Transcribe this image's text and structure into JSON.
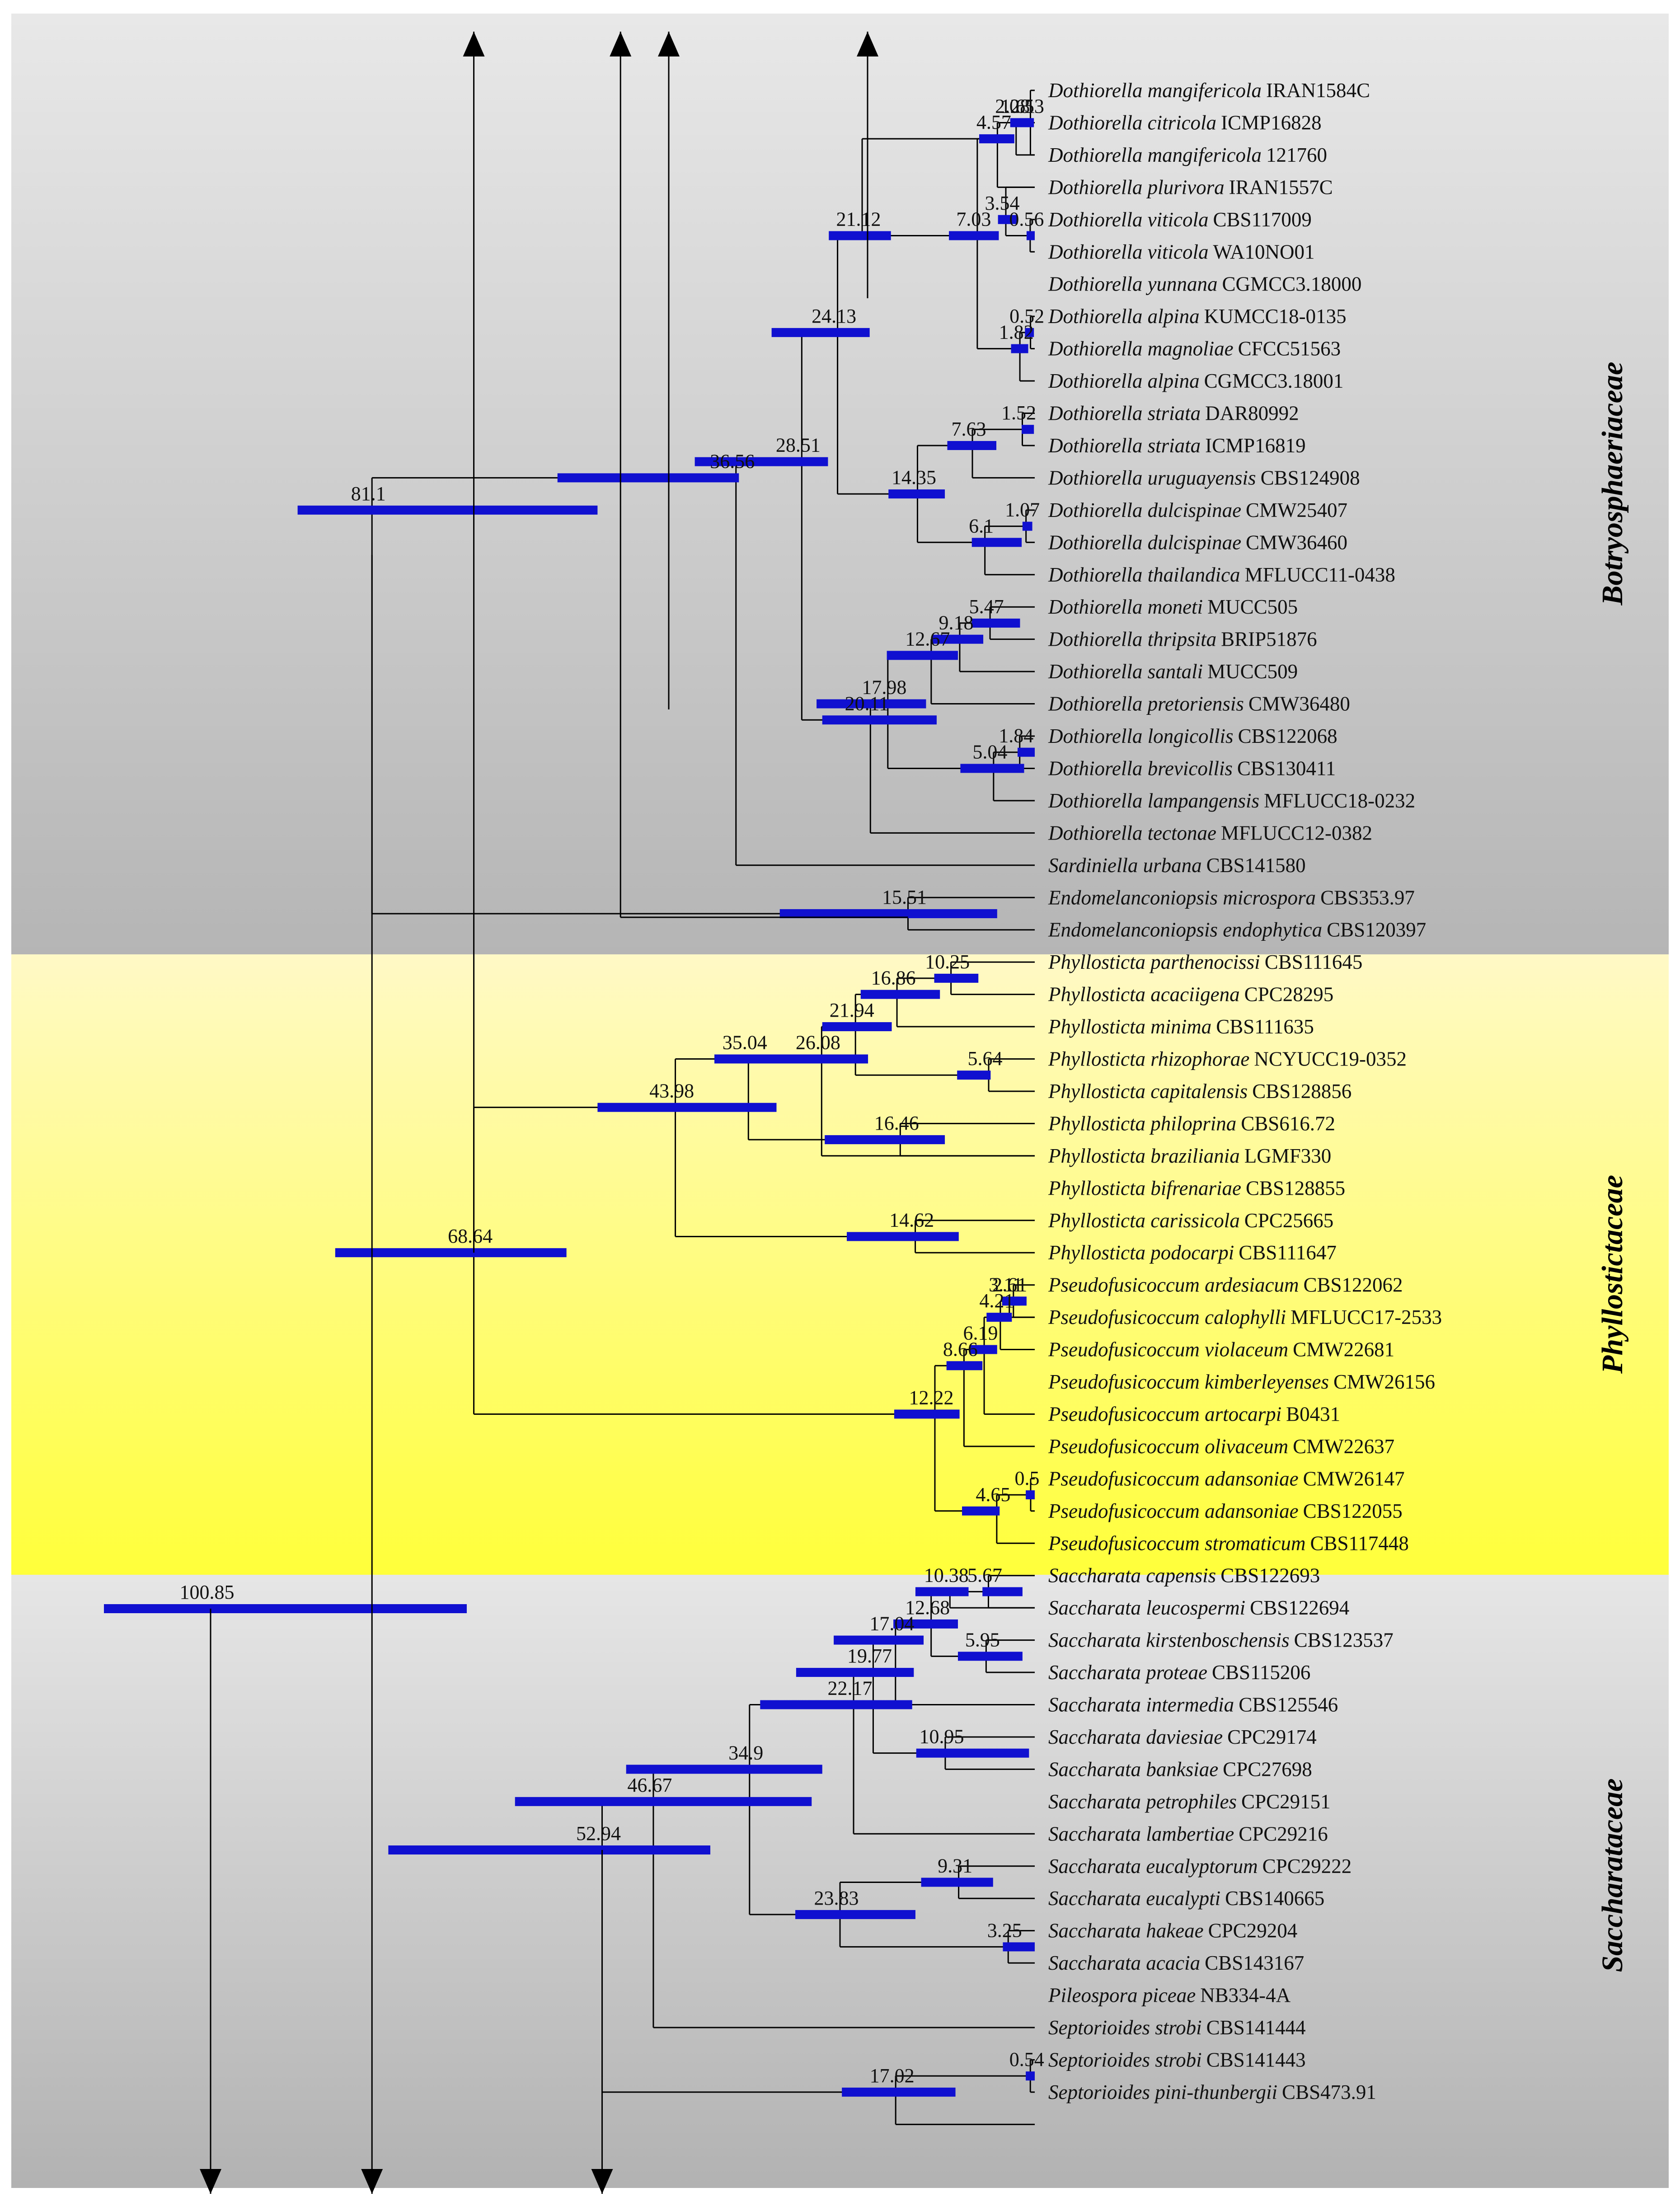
{
  "colors": {
    "bar": "#1010d0",
    "line": "#000000",
    "band_gray_top": "#e6e6e6",
    "band_gray_bottom": "#b6b6b6",
    "band_yellow_top": "#fff9c8",
    "band_yellow_bottom": "#ffff3c",
    "text": "#111111"
  },
  "families": {
    "botryosphaeriaceae": "Botryosphaeriaceae",
    "phyllostictaceae": "Phyllostictaceae",
    "saccharataceae": "Saccharataceae"
  },
  "tips": [
    {
      "genus": "Dothiorella",
      "species": "mangifericola",
      "strain": "IRAN1584C"
    },
    {
      "genus": "Dothiorella",
      "species": "citricola",
      "strain": "ICMP16828"
    },
    {
      "genus": "Dothiorella",
      "species": "mangifericola",
      "strain": "121760"
    },
    {
      "genus": "Dothiorella",
      "species": "plurivora",
      "strain": "IRAN1557C"
    },
    {
      "genus": "Dothiorella",
      "species": "viticola",
      "strain": "CBS117009"
    },
    {
      "genus": "Dothiorella",
      "species": "viticola",
      "strain": "WA10NO01"
    },
    {
      "genus": "Dothiorella",
      "species": "yunnana",
      "strain": "CGMCC3.18000"
    },
    {
      "genus": "Dothiorella",
      "species": "alpina",
      "strain": "KUMCC18-0135"
    },
    {
      "genus": "Dothiorella",
      "species": "magnoliae",
      "strain": "CFCC51563"
    },
    {
      "genus": "Dothiorella",
      "species": "alpina",
      "strain": "CGMCC3.18001"
    },
    {
      "genus": "Dothiorella",
      "species": "striata",
      "strain": "DAR80992"
    },
    {
      "genus": "Dothiorella",
      "species": "striata",
      "strain": "ICMP16819"
    },
    {
      "genus": "Dothiorella",
      "species": "uruguayensis",
      "strain": "CBS124908"
    },
    {
      "genus": "Dothiorella",
      "species": "dulcispinae",
      "strain": "CMW25407"
    },
    {
      "genus": "Dothiorella",
      "species": "dulcispinae",
      "strain": "CMW36460"
    },
    {
      "genus": "Dothiorella",
      "species": "thailandica",
      "strain": "MFLUCC11-0438"
    },
    {
      "genus": "Dothiorella",
      "species": "moneti",
      "strain": "MUCC505"
    },
    {
      "genus": "Dothiorella",
      "species": "thripsita",
      "strain": "BRIP51876"
    },
    {
      "genus": "Dothiorella",
      "species": "santali",
      "strain": "MUCC509"
    },
    {
      "genus": "Dothiorella",
      "species": "pretoriensis",
      "strain": "CMW36480"
    },
    {
      "genus": "Dothiorella",
      "species": "longicollis",
      "strain": "CBS122068"
    },
    {
      "genus": "Dothiorella",
      "species": "brevicollis",
      "strain": "CBS130411"
    },
    {
      "genus": "Dothiorella",
      "species": "lampangensis",
      "strain": "MFLUCC18-0232"
    },
    {
      "genus": "Dothiorella",
      "species": "tectonae",
      "strain": "MFLUCC12-0382"
    },
    {
      "genus": "Sardiniella",
      "species": "urbana",
      "strain": "CBS141580"
    },
    {
      "genus": "Endomelanconiopsis",
      "species": "microspora",
      "strain": "CBS353.97"
    },
    {
      "genus": "Endomelanconiopsis",
      "species": "endophytica",
      "strain": "CBS120397"
    },
    {
      "genus": "Phyllosticta",
      "species": "parthenocissi",
      "strain": "CBS111645"
    },
    {
      "genus": "Phyllosticta",
      "species": "acaciigena",
      "strain": "CPC28295"
    },
    {
      "genus": "Phyllosticta",
      "species": "minima",
      "strain": "CBS111635"
    },
    {
      "genus": "Phyllosticta",
      "species": "rhizophorae",
      "strain": "NCYUCC19-0352"
    },
    {
      "genus": "Phyllosticta",
      "species": "capitalensis",
      "strain": "CBS128856"
    },
    {
      "genus": "Phyllosticta",
      "species": "philoprina",
      "strain": "CBS616.72"
    },
    {
      "genus": "Phyllosticta",
      "species": "braziliania",
      "strain": "LGMF330"
    },
    {
      "genus": "Phyllosticta",
      "species": "bifrenariae",
      "strain": "CBS128855"
    },
    {
      "genus": "Phyllosticta",
      "species": "carissicola",
      "strain": "CPC25665"
    },
    {
      "genus": "Phyllosticta",
      "species": "podocarpi",
      "strain": "CBS111647"
    },
    {
      "genus": "Pseudofusicoccum",
      "species": "ardesiacum",
      "strain": "CBS122062"
    },
    {
      "genus": "Pseudofusicoccum",
      "species": "calophylli",
      "strain": "MFLUCC17-2533"
    },
    {
      "genus": "Pseudofusicoccum",
      "species": "violaceum",
      "strain": "CMW22681"
    },
    {
      "genus": "Pseudofusicoccum",
      "species": "kimberleyenses",
      "strain": "CMW26156"
    },
    {
      "genus": "Pseudofusicoccum",
      "species": "artocarpi",
      "strain": "B0431"
    },
    {
      "genus": "Pseudofusicoccum",
      "species": "olivaceum",
      "strain": "CMW22637"
    },
    {
      "genus": "Pseudofusicoccum",
      "species": "adansoniae",
      "strain": "CMW26147"
    },
    {
      "genus": "Pseudofusicoccum",
      "species": "adansoniae",
      "strain": "CBS122055"
    },
    {
      "genus": "Pseudofusicoccum",
      "species": "stromaticum",
      "strain": "CBS117448"
    },
    {
      "genus": "Saccharata",
      "species": "capensis",
      "strain": "CBS122693"
    },
    {
      "genus": "Saccharata",
      "species": "leucospermi",
      "strain": "CBS122694"
    },
    {
      "genus": "Saccharata",
      "species": "kirstenboschensis",
      "strain": "CBS123537"
    },
    {
      "genus": "Saccharata",
      "species": "proteae",
      "strain": "CBS115206"
    },
    {
      "genus": "Saccharata",
      "species": "intermedia",
      "strain": "CBS125546"
    },
    {
      "genus": "Saccharata",
      "species": "daviesiae",
      "strain": "CPC29174"
    },
    {
      "genus": "Saccharata",
      "species": "banksiae",
      "strain": "CPC27698"
    },
    {
      "genus": "Saccharata",
      "species": "petrophiles",
      "strain": "CPC29151"
    },
    {
      "genus": "Saccharata",
      "species": "lambertiae",
      "strain": "CPC29216"
    },
    {
      "genus": "Saccharata",
      "species": "eucalyptorum",
      "strain": "CPC29222"
    },
    {
      "genus": "Saccharata",
      "species": "eucalypti",
      "strain": "CBS140665"
    },
    {
      "genus": "Saccharata",
      "species": "hakeae",
      "strain": "CPC29204"
    },
    {
      "genus": "Saccharata",
      "species": "acacia",
      "strain": "CBS143167"
    },
    {
      "genus": "Pileospora",
      "species": "piceae",
      "strain": "NB334-4A"
    },
    {
      "genus": "Septorioides",
      "species": "strobi",
      "strain": "CBS141444"
    },
    {
      "genus": "Septorioides",
      "species": "strobi",
      "strain": "CBS141443"
    },
    {
      "genus": "Septorioides",
      "species": "pini-thunbergii",
      "strain": "CBS473.91"
    }
  ],
  "nodes": [
    {
      "id": "n_root",
      "age": 100.85,
      "label": "100.85",
      "hpd": [
        69.5,
        113.9
      ],
      "children": [
        "n_b",
        "n_p"
      ]
    },
    {
      "id": "n_b",
      "age": 81.1,
      "label": "81.1",
      "hpd": [
        53.5,
        90.2
      ],
      "children": [
        "n_bt",
        "n_end"
      ]
    },
    {
      "id": "n_bt",
      "age": 36.56,
      "label": "36.56",
      "hpd": [
        36.2,
        58.4
      ],
      "children": [
        "n_doth",
        "t24"
      ]
    },
    {
      "id": "n_doth",
      "age": 28.51,
      "label": "28.51",
      "hpd": [
        25.3,
        41.6
      ],
      "children": [
        "n_24",
        "n_20"
      ]
    },
    {
      "id": "n_24",
      "age": 24.13,
      "label": "24.13",
      "hpd": [
        20.2,
        32.2
      ],
      "children": [
        "n_21",
        "n_14"
      ]
    },
    {
      "id": "n_21",
      "age": 21.12,
      "label": "21.12",
      "hpd": [
        17.6,
        25.2
      ],
      "children": [
        "n_a",
        "n_7y"
      ]
    },
    {
      "id": "n_a",
      "age": 4.57,
      "label": "4.57",
      "hpd": [
        2.5,
        6.8
      ],
      "children": [
        "n_160",
        "t3"
      ]
    },
    {
      "id": "n_160",
      "age": 2.28,
      "label": "2.28",
      "hpd": [
        0.1,
        3.0
      ],
      "children": [
        "n_161",
        "t2"
      ]
    },
    {
      "id": "n_161",
      "age": 1.61,
      "label": "1.61",
      "hpd": [
        0.3,
        1.9
      ],
      "children": [
        "n_053",
        "t1"
      ]
    },
    {
      "id": "n_053",
      "age": 0.53,
      "label": "0.53",
      "hpd": [
        0.3,
        1.2
      ],
      "children": [
        "t0",
        "t2"
      ]
    },
    {
      "id": "n_354",
      "age": 3.54,
      "label": "3.54",
      "hpd": [
        2.1,
        4.5
      ],
      "children": [
        "n_056",
        "t3"
      ]
    },
    {
      "id": "n_056",
      "age": 0.56,
      "label": "0.56",
      "hpd": [
        0.0,
        1.0
      ],
      "children": [
        "t4",
        "t5"
      ]
    },
    {
      "id": "n_7y",
      "age": 7.03,
      "label": "7.03",
      "hpd": [
        4.4,
        10.5
      ],
      "children": [
        "n_a",
        "n_182"
      ]
    },
    {
      "id": "n_182",
      "age": 1.82,
      "label": "1.82",
      "hpd": [
        0.8,
        2.9
      ],
      "children": [
        "n_052",
        "t9"
      ]
    },
    {
      "id": "n_052",
      "age": 0.52,
      "label": "0.52",
      "hpd": [
        0.1,
        1.2
      ],
      "children": [
        "t7",
        "t8"
      ]
    },
    {
      "id": "n_14",
      "age": 14.35,
      "label": "14.35",
      "hpd": [
        11.0,
        17.9
      ],
      "children": [
        "n_763",
        "n_61"
      ]
    },
    {
      "id": "n_763",
      "age": 7.63,
      "label": "7.63",
      "hpd": [
        4.7,
        10.7
      ],
      "children": [
        "n_152",
        "t12"
      ]
    },
    {
      "id": "n_152",
      "age": 1.52,
      "label": "1.52",
      "hpd": [
        0.1,
        1.6
      ],
      "children": [
        "t10",
        "t11"
      ]
    },
    {
      "id": "n_61",
      "age": 6.1,
      "label": "6.1",
      "hpd": [
        1.6,
        7.7
      ],
      "children": [
        "n_107",
        "t15"
      ]
    },
    {
      "id": "n_107",
      "age": 1.07,
      "label": "1.07",
      "hpd": [
        0.3,
        1.5
      ],
      "children": [
        "t13",
        "t14"
      ]
    },
    {
      "id": "n_20",
      "age": 20.11,
      "label": "20.11",
      "hpd": [
        12.0,
        26.0
      ],
      "children": [
        "n_1798",
        "t23"
      ]
    },
    {
      "id": "n_1798",
      "age": 17.98,
      "label": "17.98",
      "hpd": [
        13.3,
        26.7
      ],
      "children": [
        "n_1267",
        "n_504"
      ]
    },
    {
      "id": "n_1267",
      "age": 12.67,
      "label": "12.67",
      "hpd": [
        9.4,
        18.1
      ],
      "children": [
        "n_918",
        "t19"
      ]
    },
    {
      "id": "n_918",
      "age": 9.18,
      "label": "9.18",
      "hpd": [
        6.3,
        12.6
      ],
      "children": [
        "n_547",
        "t18"
      ]
    },
    {
      "id": "n_547",
      "age": 5.47,
      "label": "5.47",
      "hpd": [
        1.8,
        7.7
      ],
      "children": [
        "t16",
        "t17"
      ]
    },
    {
      "id": "n_504",
      "age": 5.04,
      "label": "5.04",
      "hpd": [
        1.3,
        9.1
      ],
      "children": [
        "n_184",
        "t22"
      ]
    },
    {
      "id": "n_184",
      "age": 1.84,
      "label": "1.84",
      "hpd": [
        0.0,
        2.1
      ],
      "children": [
        "t20",
        "t21"
      ]
    },
    {
      "id": "n_end",
      "age": 15.51,
      "label": "15.51",
      "hpd": [
        4.6,
        31.2
      ],
      "children": [
        "t25",
        "t26"
      ]
    },
    {
      "id": "n_p",
      "age": 68.64,
      "label": "68.64",
      "hpd": [
        57.3,
        85.6
      ],
      "children": [
        "n_4398",
        "n_1222"
      ]
    },
    {
      "id": "n_4398",
      "age": 43.98,
      "label": "43.98",
      "hpd": [
        31.6,
        53.5
      ],
      "children": [
        "n_3504",
        "n_1462"
      ]
    },
    {
      "id": "n_3504",
      "age": 35.04,
      "label": "35.04",
      "hpd": [
        21.6,
        39.2
      ],
      "children": [
        "n_2608",
        "n_1646"
      ]
    },
    {
      "id": "n_2608",
      "age": 26.08,
      "label": "26.08",
      "hpd": [
        20.4,
        30.9
      ],
      "children": [
        "n_2194",
        "t33"
      ]
    },
    {
      "id": "n_2194",
      "age": 21.94,
      "label": "21.94",
      "hpd": [
        17.5,
        26.0
      ],
      "children": [
        "n_1686",
        "n_564"
      ]
    },
    {
      "id": "n_1686",
      "age": 16.86,
      "label": "16.86",
      "hpd": [
        11.6,
        21.3
      ],
      "children": [
        "n_1025",
        "t29"
      ]
    },
    {
      "id": "n_1025",
      "age": 10.25,
      "label": "10.25",
      "hpd": [
        6.9,
        12.3
      ],
      "children": [
        "t27",
        "t28"
      ]
    },
    {
      "id": "n_564",
      "age": 5.64,
      "label": "5.64",
      "hpd": [
        5.4,
        9.5
      ],
      "children": [
        "t30",
        "t31"
      ]
    },
    {
      "id": "n_1646",
      "age": 16.46,
      "label": "16.46",
      "hpd": [
        11.0,
        25.7
      ],
      "children": [
        "t32",
        "t33"
      ]
    },
    {
      "id": "n_1462",
      "age": 14.62,
      "label": "14.62",
      "hpd": [
        9.3,
        23.0
      ],
      "children": [
        "t35",
        "t36"
      ]
    },
    {
      "id": "n_1222",
      "age": 12.22,
      "label": "12.22",
      "hpd": [
        9.2,
        17.2
      ],
      "children": [
        "n_866",
        "n_465"
      ]
    },
    {
      "id": "n_866",
      "age": 8.66,
      "label": "8.66",
      "hpd": [
        6.4,
        10.8
      ],
      "children": [
        "n_619",
        "t42"
      ]
    },
    {
      "id": "n_619",
      "age": 6.19,
      "label": "6.19",
      "hpd": [
        4.6,
        8.0
      ],
      "children": [
        "n_421",
        "t41"
      ]
    },
    {
      "id": "n_421",
      "age": 4.21,
      "label": "4.21",
      "hpd": [
        2.8,
        5.9
      ],
      "children": [
        "n_311",
        "t39"
      ]
    },
    {
      "id": "n_311",
      "age": 3.11,
      "label": "3.11",
      "hpd": [
        1.8,
        4.0
      ],
      "children": [
        "n_261",
        "t38"
      ]
    },
    {
      "id": "n_261",
      "age": 2.61,
      "label": "2.61",
      "hpd": [
        1.0,
        2.8
      ],
      "children": [
        "t37",
        "t38"
      ]
    },
    {
      "id": "n_465",
      "age": 4.65,
      "label": "4.65",
      "hpd": [
        4.3,
        8.9
      ],
      "children": [
        "n_05",
        "t45"
      ]
    },
    {
      "id": "n_05",
      "age": 0.5,
      "label": "0.5",
      "hpd": [
        0.0,
        1.1
      ],
      "children": [
        "t43",
        "t44"
      ]
    },
    {
      "id": "n_5294",
      "age": 52.94,
      "label": "52.94",
      "hpd": [
        39.7,
        79.1
      ],
      "children": [
        "n_4667",
        "n_1702"
      ]
    },
    {
      "id": "n_4667",
      "age": 46.67,
      "label": "46.67",
      "hpd": [
        27.3,
        63.6
      ],
      "children": [
        "n_349",
        "t60"
      ]
    },
    {
      "id": "n_349",
      "age": 34.9,
      "label": "34.9",
      "hpd": [
        26.0,
        50.0
      ],
      "children": [
        "n_2217",
        "n_2383"
      ]
    },
    {
      "id": "n_2217",
      "age": 22.17,
      "label": "22.17",
      "hpd": [
        15.0,
        33.6
      ],
      "children": [
        "n_1977",
        "t54"
      ]
    },
    {
      "id": "n_1977",
      "age": 19.77,
      "label": "19.77",
      "hpd": [
        14.8,
        29.2
      ],
      "children": [
        "n_1704",
        "n_1095"
      ]
    },
    {
      "id": "n_1704",
      "age": 17.04,
      "label": "17.04",
      "hpd": [
        13.6,
        24.6
      ],
      "children": [
        "n_1268",
        "t50"
      ]
    },
    {
      "id": "n_1268",
      "age": 12.68,
      "label": "12.68",
      "hpd": [
        9.4,
        17.3
      ],
      "children": [
        "n_1038",
        "n_595"
      ]
    },
    {
      "id": "n_1038",
      "age": 10.38,
      "label": "10.38",
      "hpd": [
        8.1,
        14.6
      ],
      "children": [
        "n_567",
        "t47"
      ]
    },
    {
      "id": "n_567",
      "age": 5.67,
      "label": "5.67",
      "hpd": [
        1.5,
        6.4
      ],
      "children": [
        "t46",
        "t47"
      ]
    },
    {
      "id": "n_595",
      "age": 5.95,
      "label": "5.95",
      "hpd": [
        1.5,
        9.4
      ],
      "children": [
        "t48",
        "t49"
      ]
    },
    {
      "id": "n_1095",
      "age": 10.95,
      "label": "10.95",
      "hpd": [
        0.7,
        14.5
      ],
      "children": [
        "t51",
        "t52"
      ]
    },
    {
      "id": "n_2383",
      "age": 23.83,
      "label": "23.83",
      "hpd": [
        14.6,
        29.3
      ],
      "children": [
        "n_931",
        "n_325"
      ]
    },
    {
      "id": "n_931",
      "age": 9.31,
      "label": "9.31",
      "hpd": [
        5.1,
        13.9
      ],
      "children": [
        "t55",
        "t56"
      ]
    },
    {
      "id": "n_325",
      "age": 3.25,
      "label": "3.25",
      "hpd": [
        0.0,
        3.9
      ],
      "children": [
        "t57",
        "t58"
      ]
    },
    {
      "id": "n_1702",
      "age": 17.02,
      "label": "17.02",
      "hpd": [
        9.7,
        23.6
      ],
      "children": [
        "n_054",
        "t63"
      ]
    },
    {
      "id": "n_054",
      "age": 0.54,
      "label": "0.54",
      "hpd": [
        0.0,
        1.1
      ],
      "children": [
        "t61",
        "t62"
      ]
    }
  ]
}
